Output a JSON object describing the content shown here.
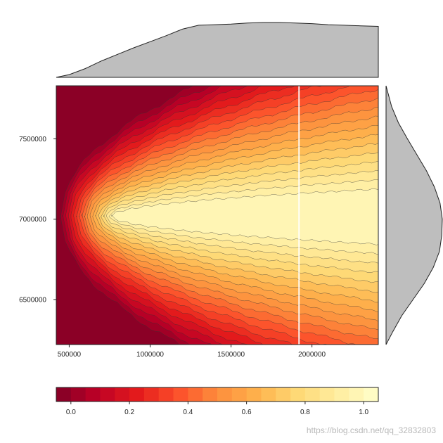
{
  "chart_data": {
    "type": "heatmap",
    "title": "",
    "xlabel": "",
    "ylabel": "",
    "xlim": [
      420000,
      2410000
    ],
    "ylim": [
      6220000,
      7830000
    ],
    "x_ticks": [
      500000,
      1000000,
      1500000,
      2000000
    ],
    "x_tick_labels": [
      "500000",
      "1000000",
      "1500000",
      "2000000"
    ],
    "y_ticks": [
      6500000,
      7000000,
      7500000
    ],
    "y_tick_labels": [
      "6500000",
      "7000000",
      "7500000"
    ],
    "z_levels": [
      -0.05,
      0.0,
      0.05,
      0.1,
      0.15,
      0.2,
      0.25,
      0.3,
      0.35,
      0.4,
      0.45,
      0.5,
      0.55,
      0.6,
      0.65,
      0.7,
      0.75,
      0.8,
      0.85,
      0.9,
      0.95,
      1.0,
      1.05
    ],
    "colorbar": {
      "tick_values": [
        0.0,
        0.2,
        0.4,
        0.6,
        0.8,
        1.0
      ],
      "tick_labels": [
        "0.0",
        "0.2",
        "0.4",
        "0.6",
        "0.8",
        "1.0"
      ],
      "range": [
        -0.05,
        1.05
      ]
    },
    "peak": {
      "x": 780000,
      "y": 7020000,
      "value": 1.0
    },
    "vertical_line_x": 1920000,
    "vertical_line_color": "#ffffff",
    "top_marginal": {
      "x": [
        420000,
        500000,
        600000,
        700000,
        800000,
        900000,
        1000000,
        1100000,
        1200000,
        1300000,
        1400000,
        1500000,
        1600000,
        1700000,
        1800000,
        1900000,
        2000000,
        2100000,
        2200000,
        2300000,
        2410000
      ],
      "density": [
        0.0,
        0.05,
        0.16,
        0.3,
        0.42,
        0.54,
        0.65,
        0.76,
        0.88,
        0.95,
        0.96,
        0.97,
        0.99,
        1.0,
        1.0,
        0.99,
        0.98,
        0.96,
        0.95,
        0.94,
        0.93
      ],
      "fill": "#bebebe"
    },
    "right_marginal": {
      "y": [
        6220000,
        6300000,
        6400000,
        6500000,
        6600000,
        6700000,
        6800000,
        6900000,
        7000000,
        7100000,
        7200000,
        7300000,
        7400000,
        7500000,
        7600000,
        7700000,
        7830000
      ],
      "density": [
        0.0,
        0.12,
        0.28,
        0.48,
        0.68,
        0.84,
        0.95,
        0.99,
        1.0,
        0.96,
        0.86,
        0.72,
        0.55,
        0.38,
        0.22,
        0.1,
        0.0
      ],
      "fill": "#bebebe"
    }
  },
  "watermark": "https://blog.csdn.net/qq_32832803"
}
